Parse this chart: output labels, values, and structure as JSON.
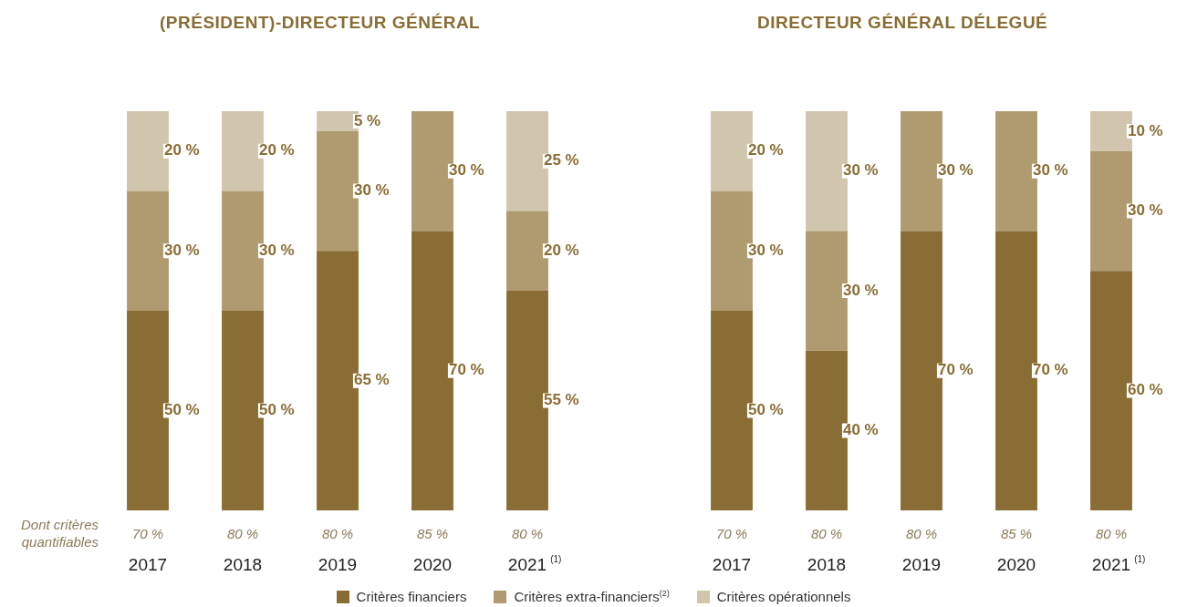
{
  "chart_data": [
    {
      "type": "bar",
      "title": "(PRÉSIDENT)-DIRECTEUR GÉNÉRAL",
      "stacked": true,
      "tick_labels": "x",
      "grid": false,
      "legend": "bottom",
      "categories": [
        "2017",
        "2018",
        "2019",
        "2020",
        "2021$^{(1)}$"
      ],
      "series": [
        {
          "name": "Critères financiers",
          "color": "#8a6d34",
          "values": [
            50,
            50,
            65,
            70,
            55
          ],
          "value_labels": [
            "50 %",
            "50 %",
            "65 %",
            "70 %",
            "55 %"
          ]
        },
        {
          "name": "Critères extra-financiers$^{(2)}$",
          "color": "#b09a70",
          "values": [
            30,
            30,
            30,
            30,
            20
          ],
          "value_labels": [
            "30 %",
            "30 %",
            "30 %",
            "30 %",
            "20 %"
          ]
        },
        {
          "name": "Critères opérationnels",
          "color": "#d2c5ae",
          "values": [
            20,
            20,
            5,
            null,
            25
          ],
          "value_labels": [
            "20 %",
            "20 %",
            "5 %",
            null,
            "25 %"
          ]
        }
      ],
      "annotations": [
        "Dont critères quantifiables",
        "70 %",
        "80 %",
        "80 %",
        "85 %",
        "80 %"
      ]
    },
    {
      "type": "bar",
      "title": "DIRECTEUR GÉNÉRAL DÉLEGUÉ",
      "stacked": true,
      "tick_labels": "x",
      "grid": false,
      "categories": [
        "2017",
        "2018",
        "2019",
        "2020",
        "2021$^{(1)}$"
      ],
      "series": [
        {
          "color": "#8a6d34",
          "values": [
            50,
            40,
            70,
            70,
            60
          ],
          "value_labels": [
            "50 %",
            "40 %",
            "70 %",
            "70 %",
            "60 %"
          ]
        },
        {
          "color": "#b09a70",
          "values": [
            30,
            30,
            30,
            30,
            30
          ],
          "value_labels": [
            "30 %",
            "30 %",
            "30 %",
            "30 %",
            "30 %"
          ]
        },
        {
          "color": "#d2c5ae",
          "values": [
            20,
            30,
            null,
            null,
            10
          ],
          "value_labels": [
            "20 %",
            "30 %",
            null,
            null,
            "10 %"
          ]
        }
      ],
      "annotations": [
        "70 %",
        "80 %",
        "80 %",
        "85 %",
        "80 %"
      ]
    }
  ]
}
